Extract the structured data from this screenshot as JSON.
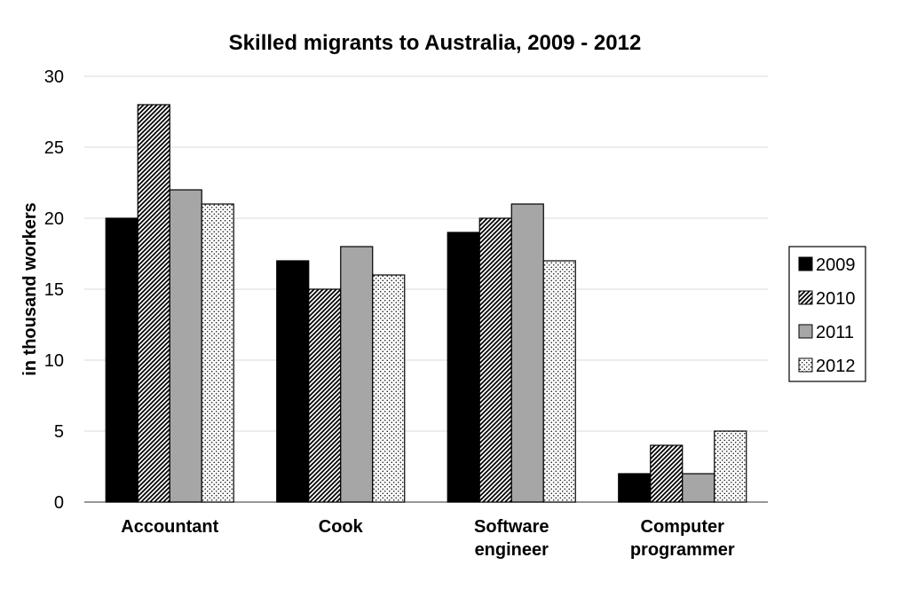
{
  "chart_data": {
    "type": "bar",
    "title": "Skilled migrants to Australia, 2009 - 2012",
    "xlabel": "",
    "ylabel": "in thousand workers",
    "ylim": [
      0,
      30
    ],
    "yticks": [
      0,
      5,
      10,
      15,
      20,
      25,
      30
    ],
    "grid": true,
    "legend_position": "right",
    "categories": [
      [
        "Accountant"
      ],
      [
        "Cook"
      ],
      [
        "Software",
        "engineer"
      ],
      [
        "Computer",
        "programmer"
      ]
    ],
    "series": [
      {
        "name": "2009",
        "pattern": "solid",
        "color": "#000000",
        "values": [
          20,
          17,
          19,
          2
        ]
      },
      {
        "name": "2010",
        "pattern": "diagonal-hatch",
        "color": "#000000",
        "values": [
          28,
          15,
          20,
          4
        ]
      },
      {
        "name": "2011",
        "pattern": "solid",
        "color": "#a6a6a6",
        "values": [
          22,
          18,
          21,
          2
        ]
      },
      {
        "name": "2012",
        "pattern": "dots",
        "color": "#000000",
        "values": [
          21,
          16,
          17,
          5
        ]
      }
    ]
  }
}
